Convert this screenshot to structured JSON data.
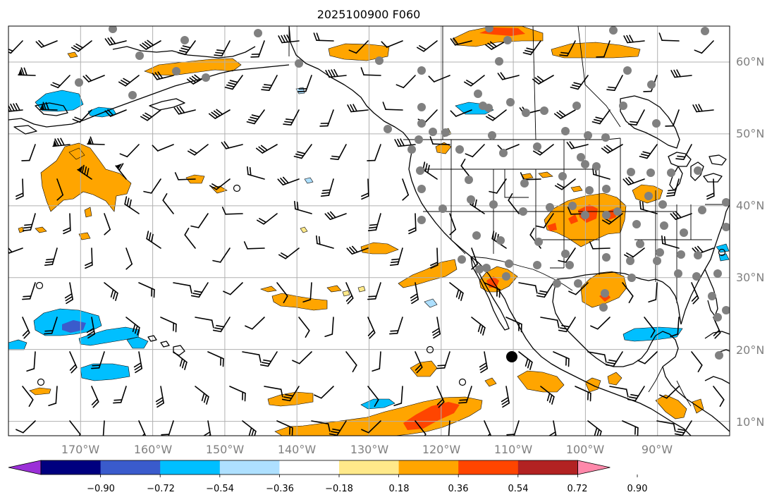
{
  "title": "2025100900 F060",
  "longitude_labels": [
    "170°W",
    "160°W",
    "150°W",
    "140°W",
    "130°W",
    "120°W",
    "110°W",
    "100°W",
    "90°W"
  ],
  "latitude_labels": [
    "60°N",
    "50°N",
    "40°N",
    "30°N",
    "20°N",
    "10°N"
  ],
  "extent": {
    "lon_min": -180,
    "lon_max": -80,
    "lat_min": 8,
    "lat_max": 65
  },
  "colorbar": {
    "tick_labels": [
      "−0.90",
      "−0.72",
      "−0.54",
      "−0.36",
      "−0.18",
      "0.18",
      "0.36",
      "0.54",
      "0.72",
      "0.90"
    ],
    "colors": [
      "#9b30d8",
      "#00007f",
      "#3a5bcc",
      "#00bfff",
      "#aee0ff",
      "#ffffff",
      "#ffe98a",
      "#ffa500",
      "#ff4500",
      "#b22222",
      "#ff88aa"
    ],
    "extend": "both"
  },
  "colors": {
    "neg_light": "#aee0ff",
    "neg_mid": "#00bfff",
    "neg_strong": "#3a5bcc",
    "pos_light": "#ffe98a",
    "pos_mid": "#ffa500",
    "pos_strong": "#ff4500",
    "station": "#808080",
    "grid": "#b0b0b0"
  },
  "marker": {
    "label": "black-dot",
    "lon": -110,
    "lat": 19
  }
}
